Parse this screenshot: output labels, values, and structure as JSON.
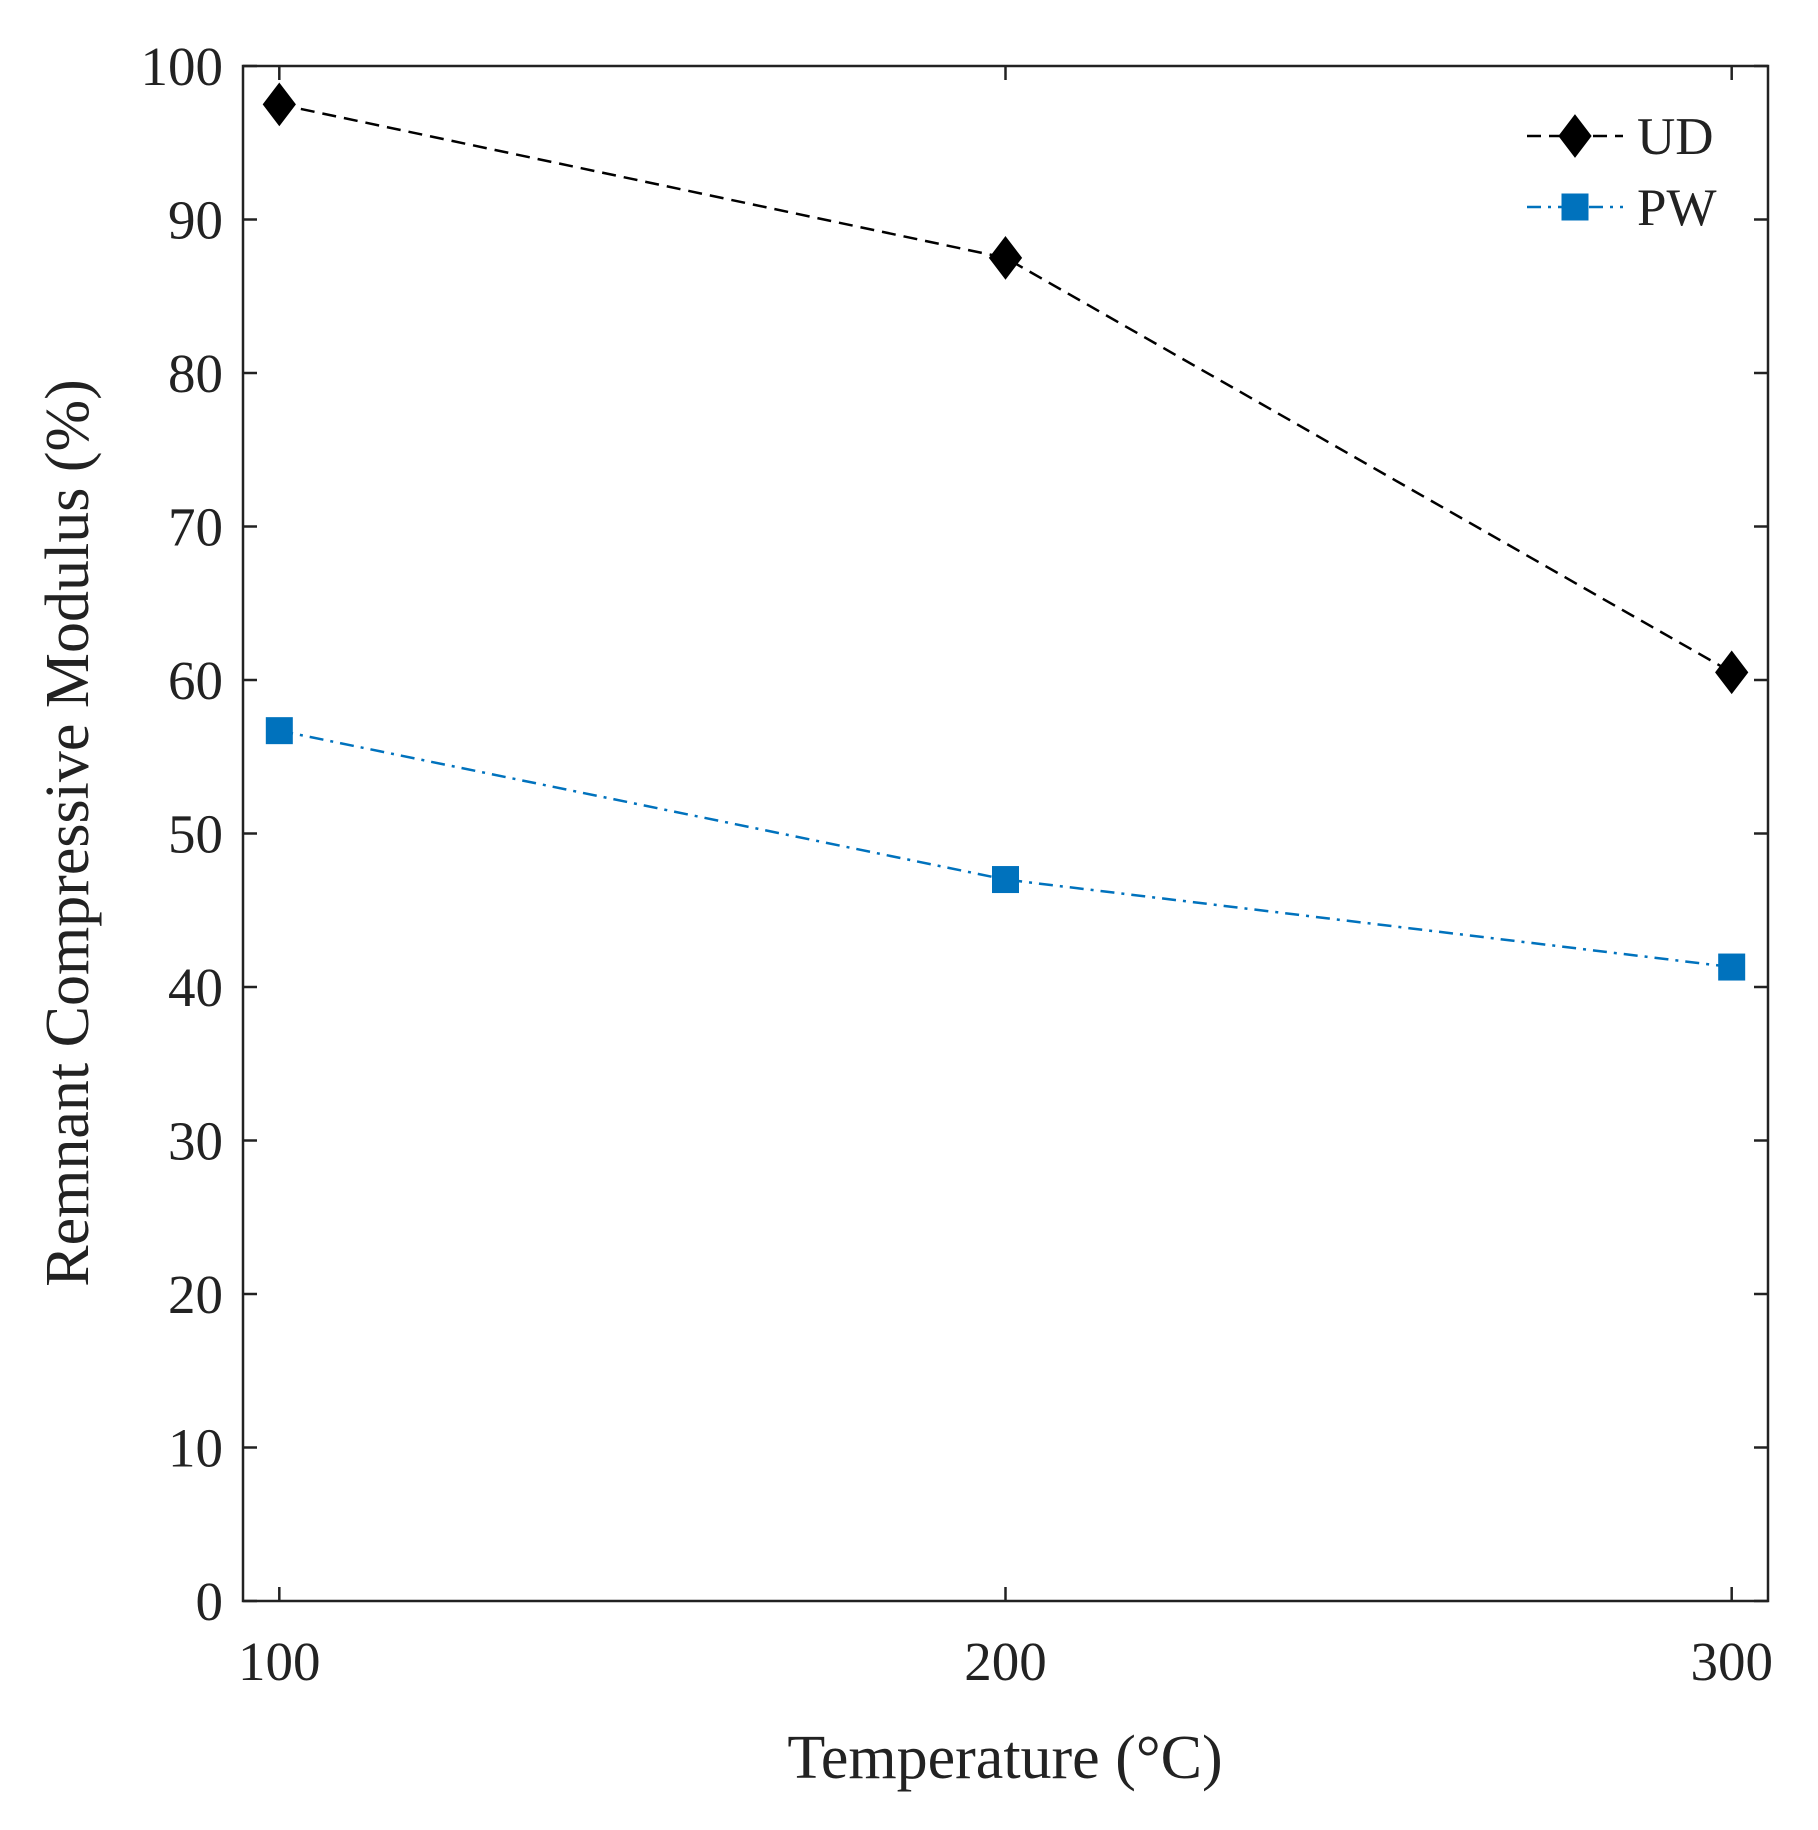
{
  "chart_data": {
    "type": "line",
    "title": "",
    "xlabel": "Temperature (°C)",
    "ylabel": "Remnant Compressive Modulus (%)",
    "x": [
      100,
      200,
      300
    ],
    "xlim": [
      95,
      305
    ],
    "ylim": [
      0,
      100
    ],
    "xticks": [
      "100",
      "200",
      "300"
    ],
    "yticks": [
      "0",
      "10",
      "20",
      "30",
      "40",
      "50",
      "60",
      "70",
      "80",
      "90",
      "100"
    ],
    "grid": false,
    "legend_position": "top-right",
    "series": [
      {
        "name": "UD",
        "values": [
          97.5,
          87.5,
          60.5
        ],
        "color": "#000000",
        "marker": "diamond",
        "line_style": "dashed"
      },
      {
        "name": "PW",
        "values": [
          56.7,
          47.0,
          41.3
        ],
        "color": "#0072bd",
        "marker": "square",
        "line_style": "dash-dot"
      }
    ]
  }
}
